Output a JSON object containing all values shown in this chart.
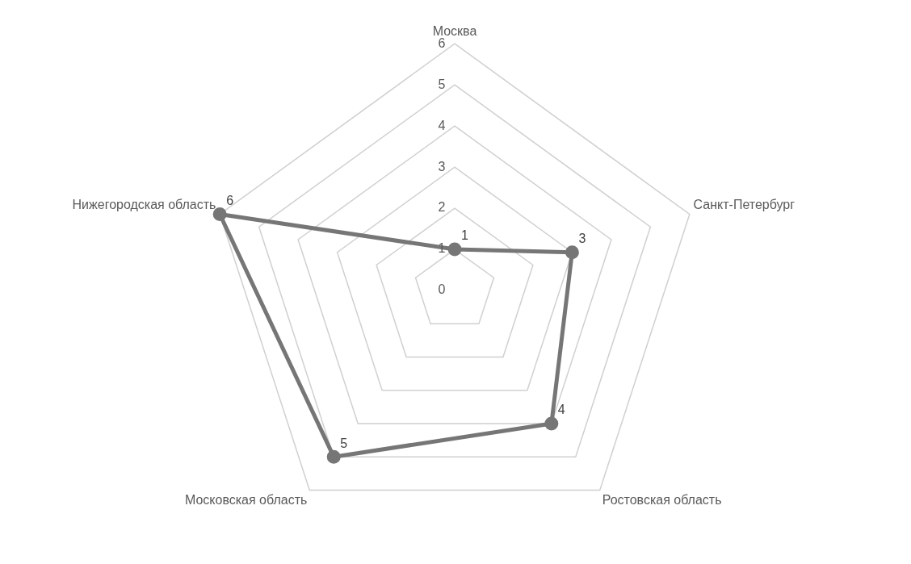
{
  "chart_data": {
    "type": "radar",
    "categories": [
      "Москва",
      "Санкт-Петербург",
      "Ростовская область",
      "Московская область",
      "Нижегородская область"
    ],
    "series": [
      {
        "color": "#767676",
        "values": [
          1,
          3,
          4,
          5,
          6
        ]
      }
    ],
    "ylim": [
      0,
      6
    ],
    "yticks": [
      0,
      1,
      2,
      3,
      4,
      5,
      6
    ],
    "grid": true,
    "legend": false,
    "marker": "circle",
    "line_style": "solid",
    "data_labels": true
  }
}
